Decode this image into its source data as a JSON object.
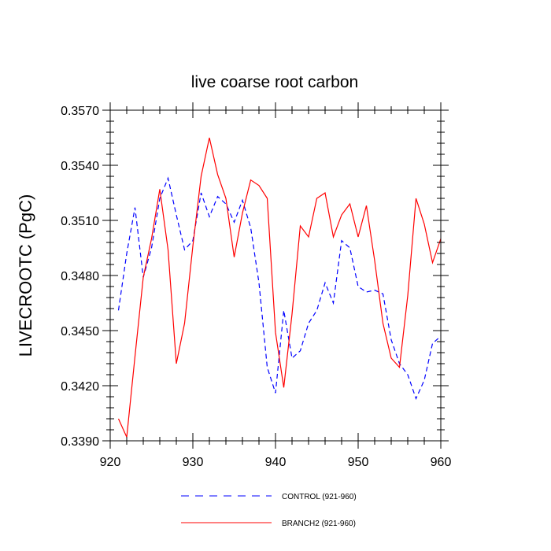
{
  "chart_data": {
    "type": "line",
    "title": "live coarse root carbon",
    "xlabel": "",
    "ylabel": "LIVECROOTC  (PgC)",
    "xlim": [
      920,
      960
    ],
    "ylim": [
      0.339,
      0.357
    ],
    "xticks": [
      920,
      930,
      940,
      950,
      960
    ],
    "xtick_labels": [
      "920",
      "930",
      "940",
      "950",
      "960"
    ],
    "yticks": [
      0.339,
      0.342,
      0.345,
      0.348,
      0.351,
      0.354,
      0.357
    ],
    "ytick_labels": [
      "0.3390",
      "0.3420",
      "0.3450",
      "0.3480",
      "0.3510",
      "0.3540",
      "0.3570"
    ],
    "grid": false,
    "legend_position": "bottom",
    "series": [
      {
        "name": "CONTROL (921-960)",
        "color": "#0000ff",
        "dash": "dashed",
        "x": [
          921,
          922,
          923,
          924,
          925,
          926,
          927,
          928,
          929,
          930,
          931,
          932,
          933,
          934,
          935,
          936,
          937,
          938,
          939,
          940,
          941,
          942,
          943,
          944,
          945,
          946,
          947,
          948,
          949,
          950,
          951,
          952,
          953,
          954,
          955,
          956,
          957,
          958,
          959,
          960
        ],
        "y": [
          0.3461,
          0.3492,
          0.3517,
          0.3479,
          0.3495,
          0.3522,
          0.3533,
          0.3513,
          0.3494,
          0.3499,
          0.3525,
          0.3512,
          0.3523,
          0.3519,
          0.3509,
          0.3521,
          0.3506,
          0.3476,
          0.343,
          0.3416,
          0.3461,
          0.3435,
          0.3439,
          0.3454,
          0.3461,
          0.3476,
          0.3465,
          0.3499,
          0.3495,
          0.3474,
          0.3471,
          0.3472,
          0.347,
          0.3445,
          0.3432,
          0.3426,
          0.3413,
          0.3423,
          0.3443,
          0.3447
        ]
      },
      {
        "name": "BRANCH2 (921-960)",
        "color": "#ff0000",
        "dash": "solid",
        "x": [
          921,
          922,
          923,
          924,
          925,
          926,
          927,
          928,
          929,
          930,
          931,
          932,
          933,
          934,
          935,
          936,
          937,
          938,
          939,
          940,
          941,
          942,
          943,
          944,
          945,
          946,
          947,
          948,
          949,
          950,
          951,
          952,
          953,
          954,
          955,
          956,
          957,
          958,
          959,
          960
        ],
        "y": [
          0.3402,
          0.3392,
          0.3436,
          0.3479,
          0.35,
          0.3527,
          0.3494,
          0.3432,
          0.3454,
          0.3496,
          0.3534,
          0.3555,
          0.3535,
          0.3522,
          0.349,
          0.3514,
          0.3532,
          0.3529,
          0.3522,
          0.3449,
          0.3419,
          0.3459,
          0.3507,
          0.3501,
          0.3522,
          0.3525,
          0.3501,
          0.3513,
          0.3519,
          0.3501,
          0.3518,
          0.3488,
          0.3454,
          0.3435,
          0.343,
          0.3469,
          0.3522,
          0.3508,
          0.3487,
          0.35
        ]
      }
    ]
  }
}
